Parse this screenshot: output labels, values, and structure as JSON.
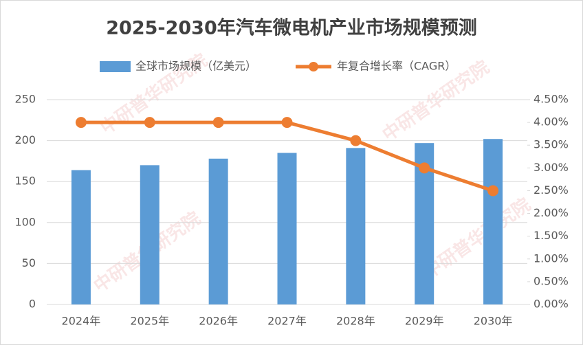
{
  "chart_data": {
    "type": "bar-line",
    "title": "2025-2030年汽车微电机产业市场规模预测",
    "watermark": "中研普华研究院",
    "categories": [
      "2024年",
      "2025年",
      "2026年",
      "2027年",
      "2028年",
      "2029年",
      "2030年"
    ],
    "series": [
      {
        "name": "全球市场规模（亿美元）",
        "type": "bar",
        "color": "#5b9bd5",
        "values": [
          164,
          170,
          178,
          185,
          191,
          197,
          202
        ]
      },
      {
        "name": "年复合增长率（CAGR）",
        "type": "line",
        "axis": "y2",
        "color": "#ed7d31",
        "values": [
          4.0,
          4.0,
          4.0,
          4.0,
          3.6,
          3.0,
          2.5
        ]
      }
    ],
    "ylim": [
      0,
      250
    ],
    "yticks": [
      0,
      50,
      100,
      150,
      200,
      250
    ],
    "y2lim": [
      0,
      4.5
    ],
    "y2ticks": [
      {
        "value": 0,
        "label": "0.00%"
      },
      {
        "value": 0.5,
        "label": "0.50%"
      },
      {
        "value": 1,
        "label": "1.00%"
      },
      {
        "value": 1.5,
        "label": "1.50%"
      },
      {
        "value": 2,
        "label": "2.00%"
      },
      {
        "value": 2.5,
        "label": "2.50%"
      },
      {
        "value": 3,
        "label": "3.00%"
      },
      {
        "value": 3.5,
        "label": "3.50%"
      },
      {
        "value": 4,
        "label": "4.00%"
      },
      {
        "value": 4.5,
        "label": "4.50%"
      }
    ],
    "grid": true,
    "legend": "top"
  }
}
